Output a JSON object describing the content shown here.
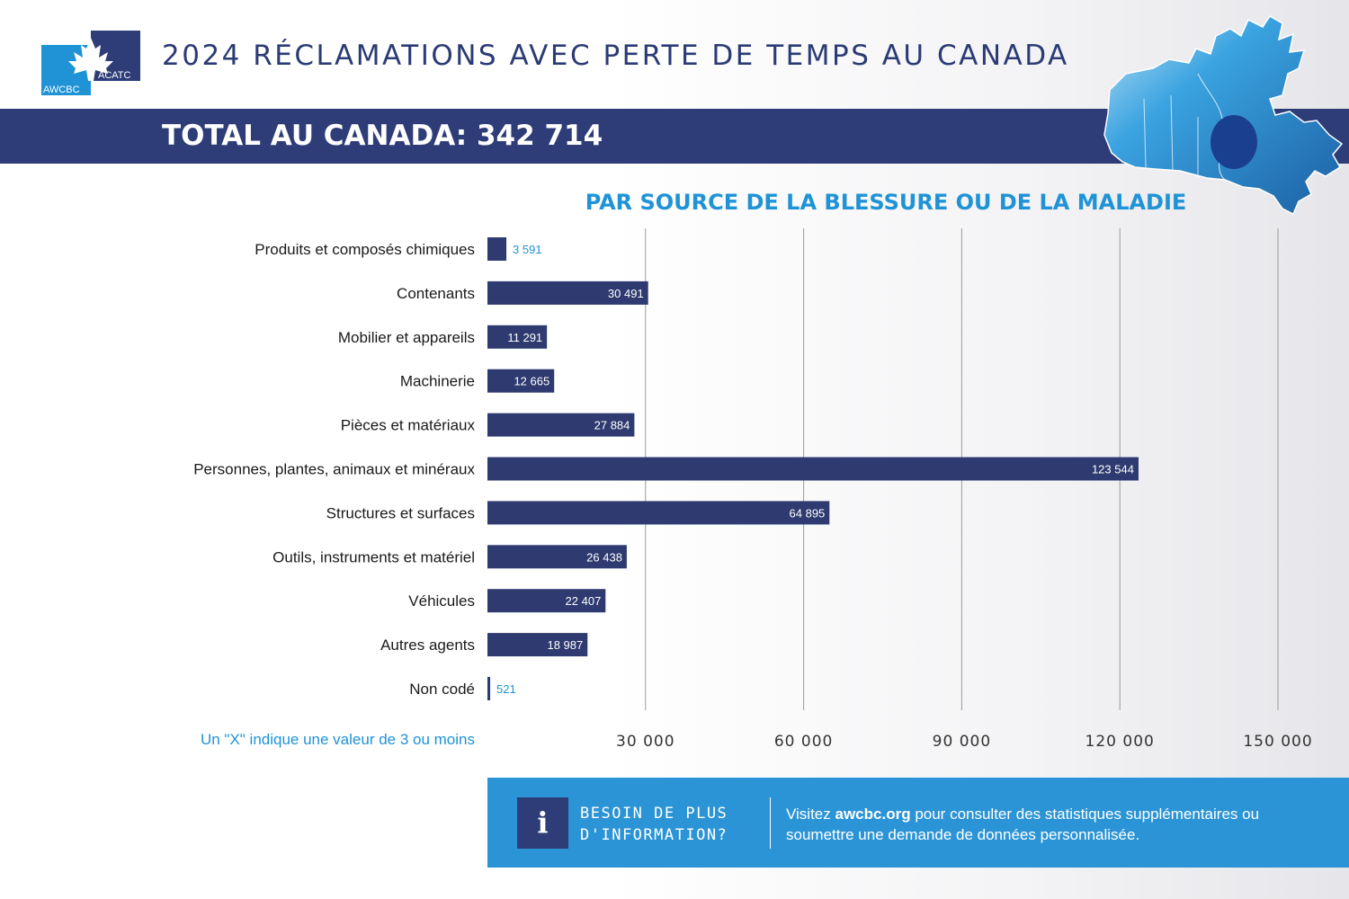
{
  "header": {
    "logo_text_left": "AWCBC",
    "logo_text_right": "ACATC",
    "title": "2024 RÉCLAMATIONS AVEC PERTE DE TEMPS AU CANADA",
    "total": "TOTAL AU CANADA: 342 714"
  },
  "colors": {
    "navy": "#2e3d78",
    "accent_blue": "#1f93d6",
    "info_box": "#2b94d6",
    "bar": "#2e3a70"
  },
  "chart_data": {
    "type": "bar",
    "orientation": "horizontal",
    "title": "PAR SOURCE DE LA BLESSURE OU DE LA MALADIE",
    "categories": [
      "Produits et composés chimiques",
      "Contenants",
      "Mobilier et appareils",
      "Machinerie",
      "Pièces et matériaux",
      "Personnes, plantes, animaux et minéraux",
      "Structures et surfaces",
      "Outils, instruments et matériel",
      "Véhicules",
      "Autres agents",
      "Non codé"
    ],
    "values": [
      3591,
      30491,
      11291,
      12665,
      27884,
      123544,
      64895,
      26438,
      22407,
      18987,
      521
    ],
    "value_labels": [
      "3 591",
      "30 491",
      "11 291",
      "12 665",
      "27 884",
      "123 544",
      "64 895",
      "26 438",
      "22 407",
      "18 987",
      "521"
    ],
    "xlim": [
      0,
      150000
    ],
    "xticks": [
      30000,
      60000,
      90000,
      120000,
      150000
    ],
    "xtick_labels": [
      "30 000",
      "60 000",
      "90 000",
      "120 000",
      "150 000"
    ],
    "grid": "vertical",
    "legend": "none"
  },
  "footnote": "Un \"X\" indique une valeur de 3 ou moins",
  "info": {
    "icon_glyph": "i",
    "heading_line1": "BESOIN DE PLUS",
    "heading_line2": "D'INFORMATION?",
    "text_before": "Visitez ",
    "link": "awcbc.org",
    "text_after": " pour consulter des statistiques supplémentaires ou soumettre une demande de données personnalisée."
  }
}
